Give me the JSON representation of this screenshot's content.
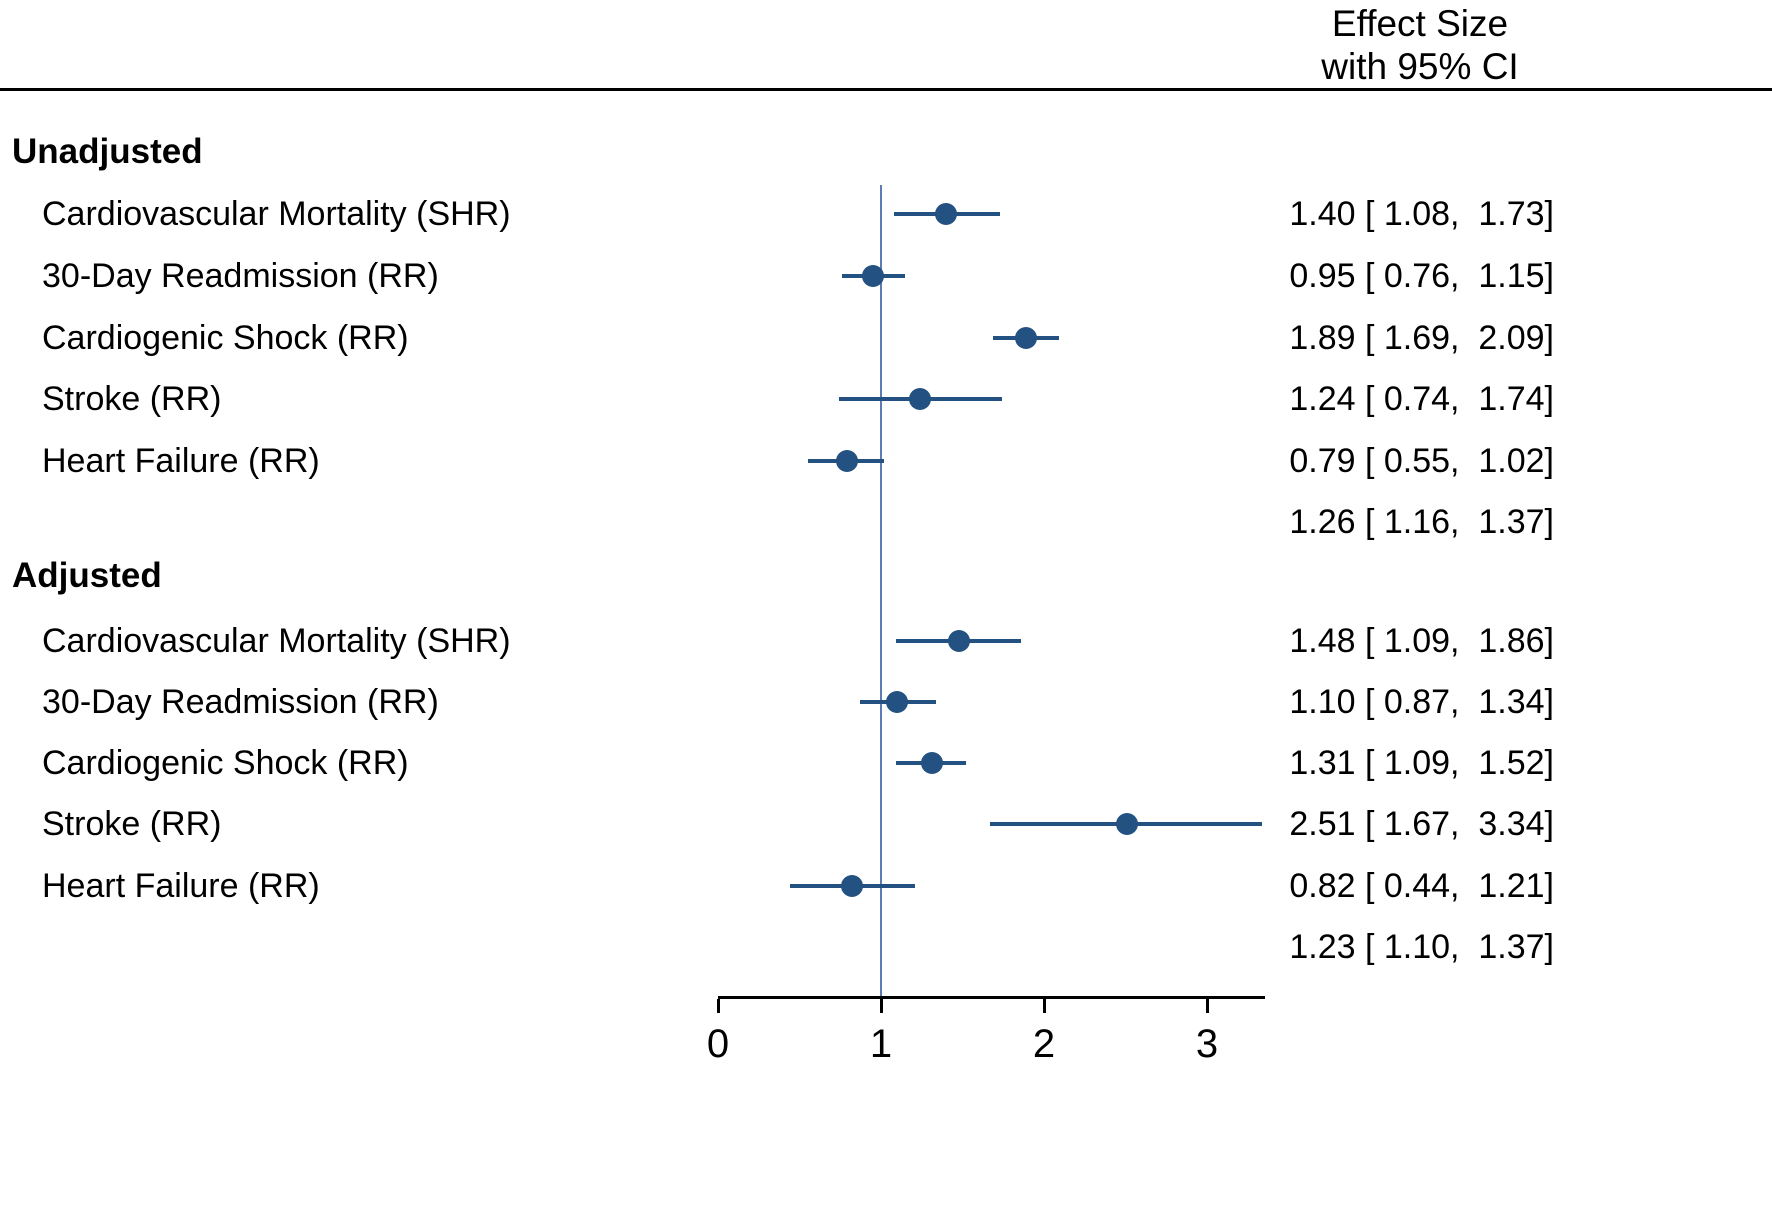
{
  "header": {
    "line1": "Effect Size",
    "line2": "with 95% CI"
  },
  "colors": {
    "marker": "#235181",
    "ci_line": "#235181",
    "ref_line": "#5B7DB1",
    "text": "#000000"
  },
  "chart_data": {
    "type": "scatter",
    "subtype": "forest-plot",
    "title": "Effect Size with 95% CI",
    "xlabel": "",
    "ylabel": "",
    "x_range": [
      0,
      3.36
    ],
    "x_ticks": [
      "0",
      "1",
      "2",
      "3"
    ],
    "x_tick_values": [
      0,
      1,
      2,
      3
    ],
    "ref_line": 1,
    "grid": false,
    "legend": "none",
    "groups": [
      {
        "label": "Unadjusted",
        "rows": [
          {
            "label": "Cardiovascular Mortality (SHR)",
            "est": 1.4,
            "lo": 1.08,
            "hi": 1.73,
            "ci_text": "1.40 [ 1.08,  1.73]"
          },
          {
            "label": "30-Day Readmission (RR)",
            "est": 0.95,
            "lo": 0.76,
            "hi": 1.15,
            "ci_text": "0.95 [ 0.76,  1.15]"
          },
          {
            "label": "Cardiogenic Shock (RR)",
            "est": 1.89,
            "lo": 1.69,
            "hi": 2.09,
            "ci_text": "1.89 [ 1.69,  2.09]"
          },
          {
            "label": "Stroke (RR)",
            "est": 1.24,
            "lo": 0.74,
            "hi": 1.74,
            "ci_text": "1.24 [ 0.74,  1.74]"
          },
          {
            "label": "Heart Failure (RR)",
            "est": 0.79,
            "lo": 0.55,
            "hi": 1.02,
            "ci_text": "0.79 [ 0.55,  1.02]"
          },
          {
            "label": "",
            "est": null,
            "lo": null,
            "hi": null,
            "ci_text": "1.26 [ 1.16,  1.37]"
          }
        ]
      },
      {
        "label": "Adjusted",
        "rows": [
          {
            "label": "Cardiovascular Mortality (SHR)",
            "est": 1.48,
            "lo": 1.09,
            "hi": 1.86,
            "ci_text": "1.48 [ 1.09,  1.86]"
          },
          {
            "label": "30-Day Readmission (RR)",
            "est": 1.1,
            "lo": 0.87,
            "hi": 1.34,
            "ci_text": "1.10 [ 0.87,  1.34]"
          },
          {
            "label": "Cardiogenic Shock (RR)",
            "est": 1.31,
            "lo": 1.09,
            "hi": 1.52,
            "ci_text": "1.31 [ 1.09,  1.52]"
          },
          {
            "label": "Stroke (RR)",
            "est": 2.51,
            "lo": 1.67,
            "hi": 3.34,
            "ci_text": "2.51 [ 1.67,  3.34]"
          },
          {
            "label": "Heart Failure (RR)",
            "est": 0.82,
            "lo": 0.44,
            "hi": 1.21,
            "ci_text": "0.82 [ 0.44,  1.21]"
          },
          {
            "label": "",
            "est": null,
            "lo": null,
            "hi": null,
            "ci_text": "1.23 [ 1.10,  1.37]"
          }
        ]
      }
    ]
  }
}
